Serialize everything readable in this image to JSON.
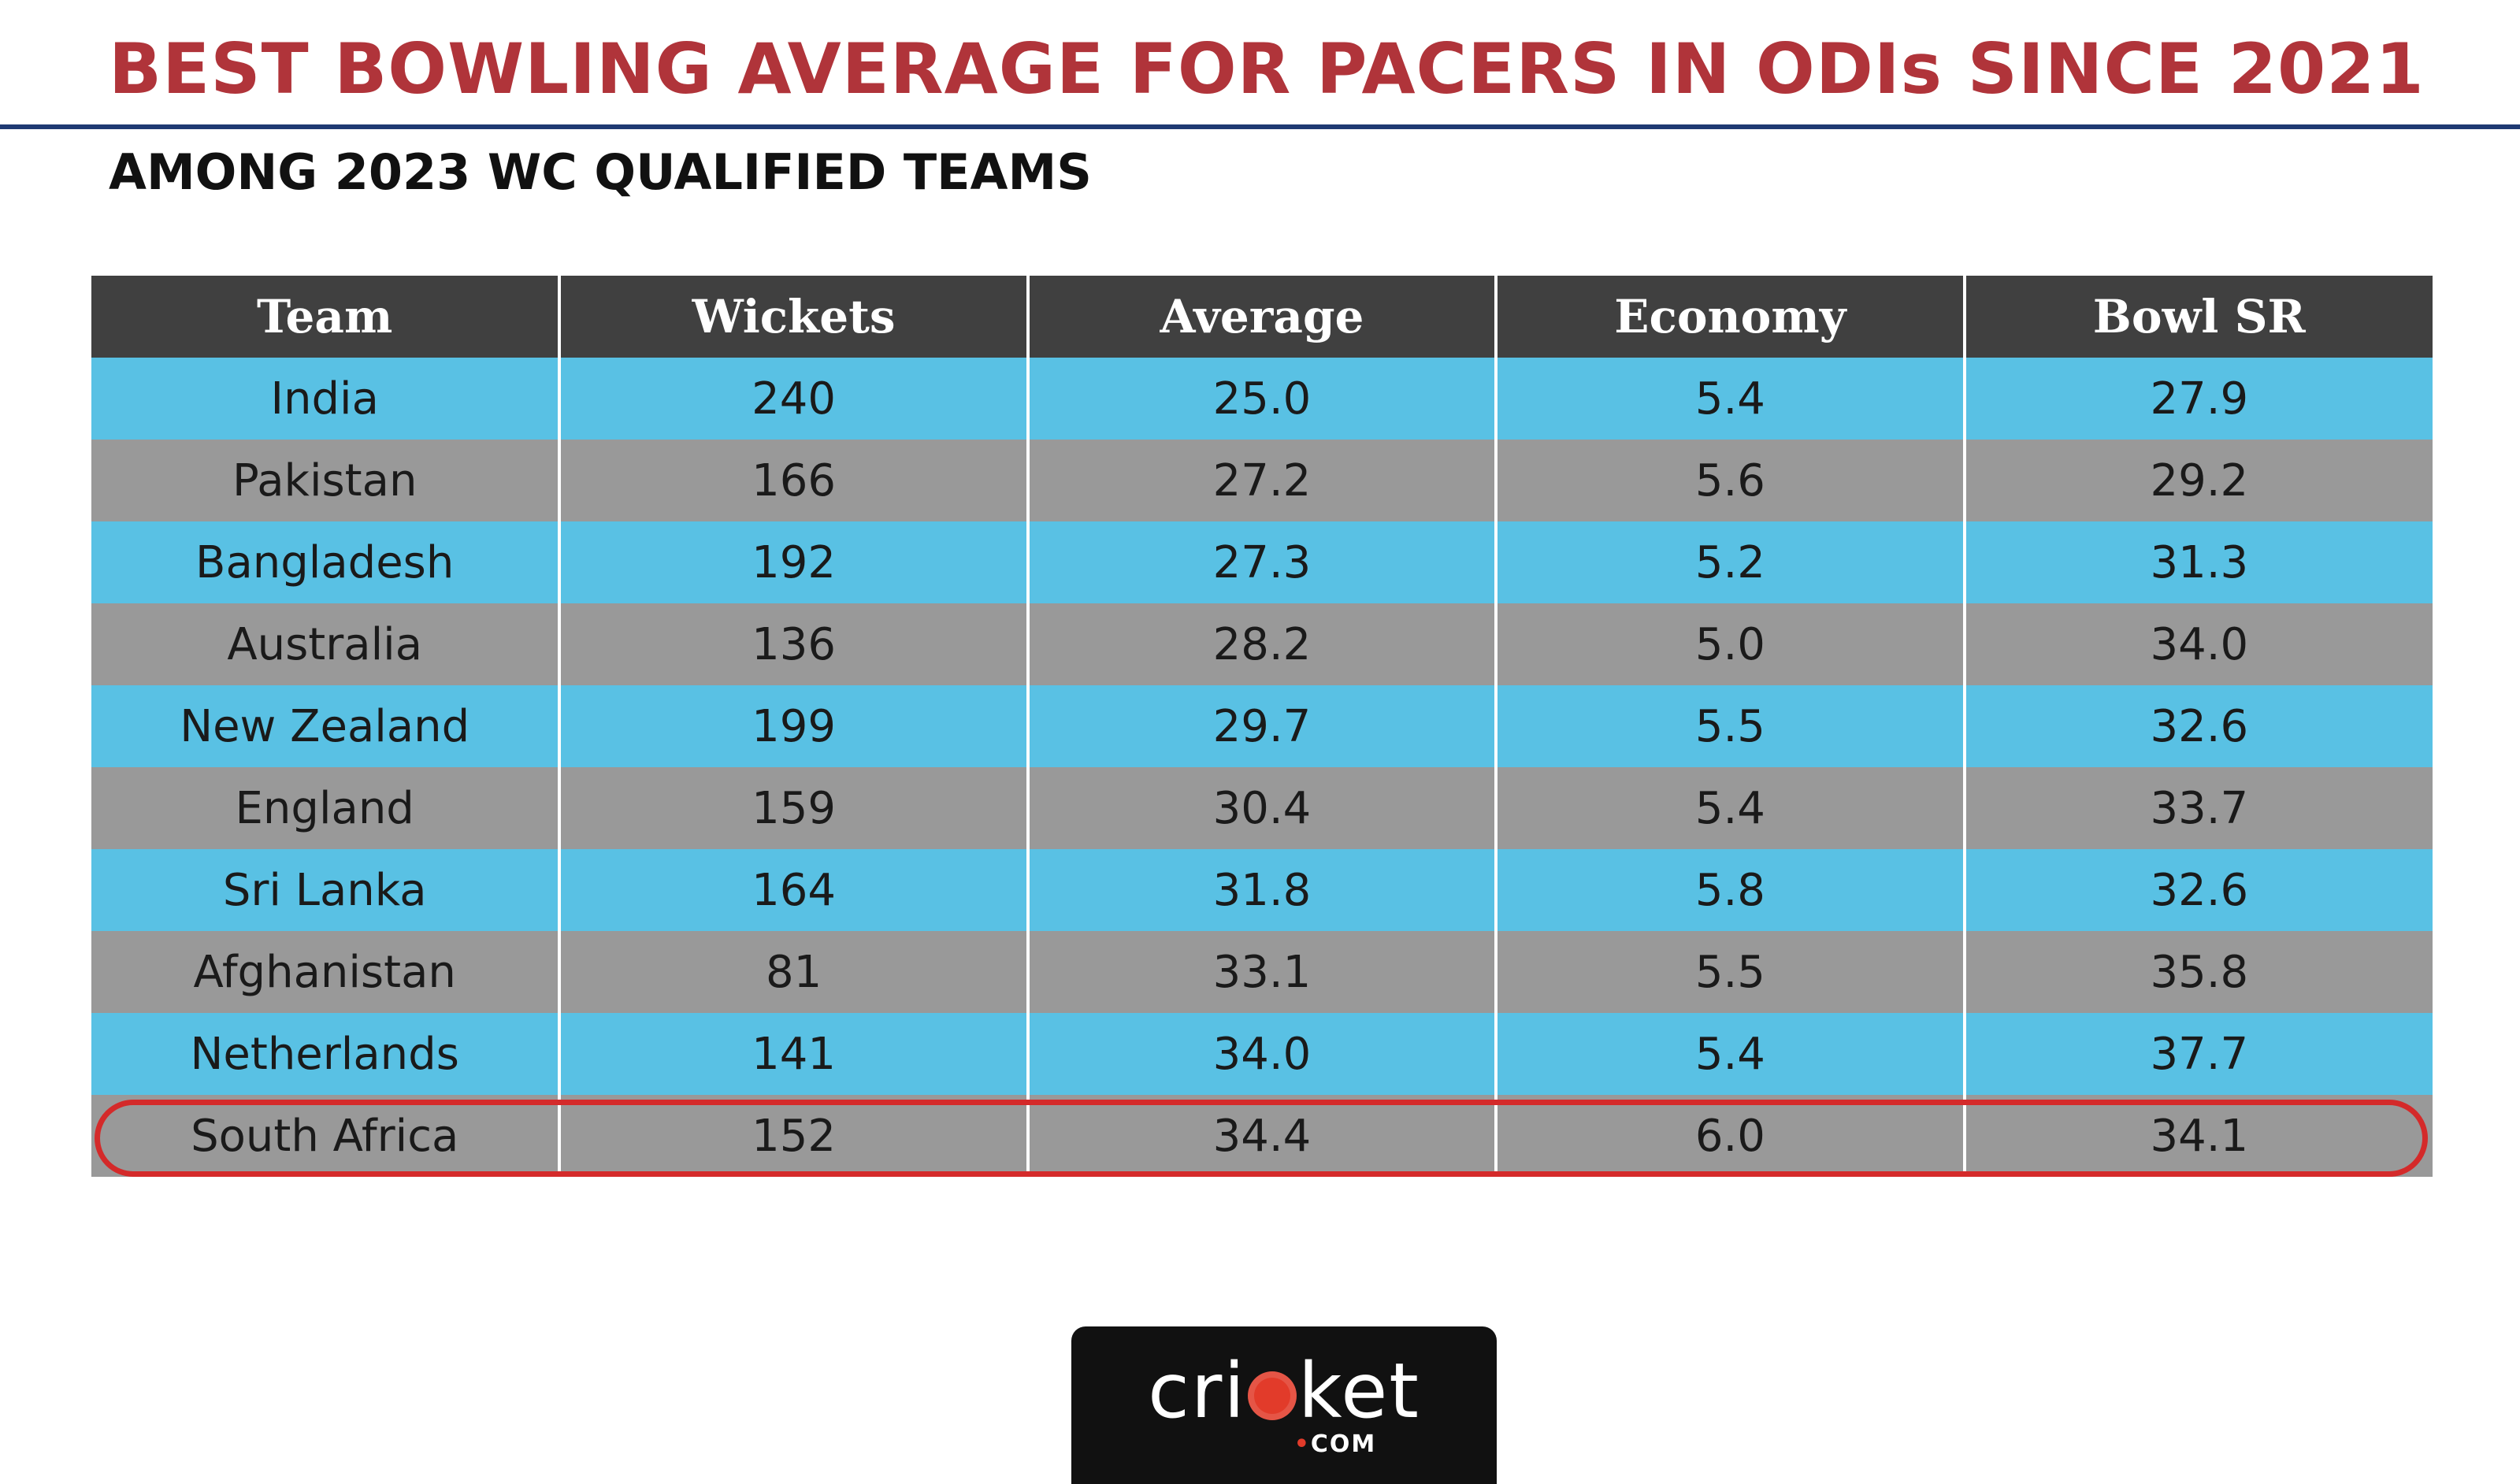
{
  "title": "BEST BOWLING AVERAGE FOR PACERS IN ODIs SINCE 2021",
  "subtitle": "AMONG 2023 WC QUALIFIED TEAMS",
  "table": {
    "headers": [
      "Team",
      "Wickets",
      "Average",
      "Economy",
      "Bowl SR"
    ],
    "rows": [
      [
        "India",
        "240",
        "25.0",
        "5.4",
        "27.9"
      ],
      [
        "Pakistan",
        "166",
        "27.2",
        "5.6",
        "29.2"
      ],
      [
        "Bangladesh",
        "192",
        "27.3",
        "5.2",
        "31.3"
      ],
      [
        "Australia",
        "136",
        "28.2",
        "5.0",
        "34.0"
      ],
      [
        "New Zealand",
        "199",
        "29.7",
        "5.5",
        "32.6"
      ],
      [
        "England",
        "159",
        "30.4",
        "5.4",
        "33.7"
      ],
      [
        "Sri Lanka",
        "164",
        "31.8",
        "5.8",
        "32.6"
      ],
      [
        "Afghanistan",
        "81",
        "33.1",
        "5.5",
        "35.8"
      ],
      [
        "Netherlands",
        "141",
        "34.0",
        "5.4",
        "37.7"
      ],
      [
        "South Africa",
        "152",
        "34.4",
        "6.0",
        "34.1"
      ]
    ],
    "highlighted_row": "South Africa"
  },
  "logo": {
    "word_left": "cri",
    "word_right": "ket",
    "suffix_dot": "•",
    "suffix": "COM"
  },
  "colors": {
    "title": "#b0343a",
    "rule": "#1f3a73",
    "header_bg": "#404040",
    "row_blue": "#59c1e4",
    "row_grey": "#999999",
    "highlight": "#d42a2a"
  }
}
